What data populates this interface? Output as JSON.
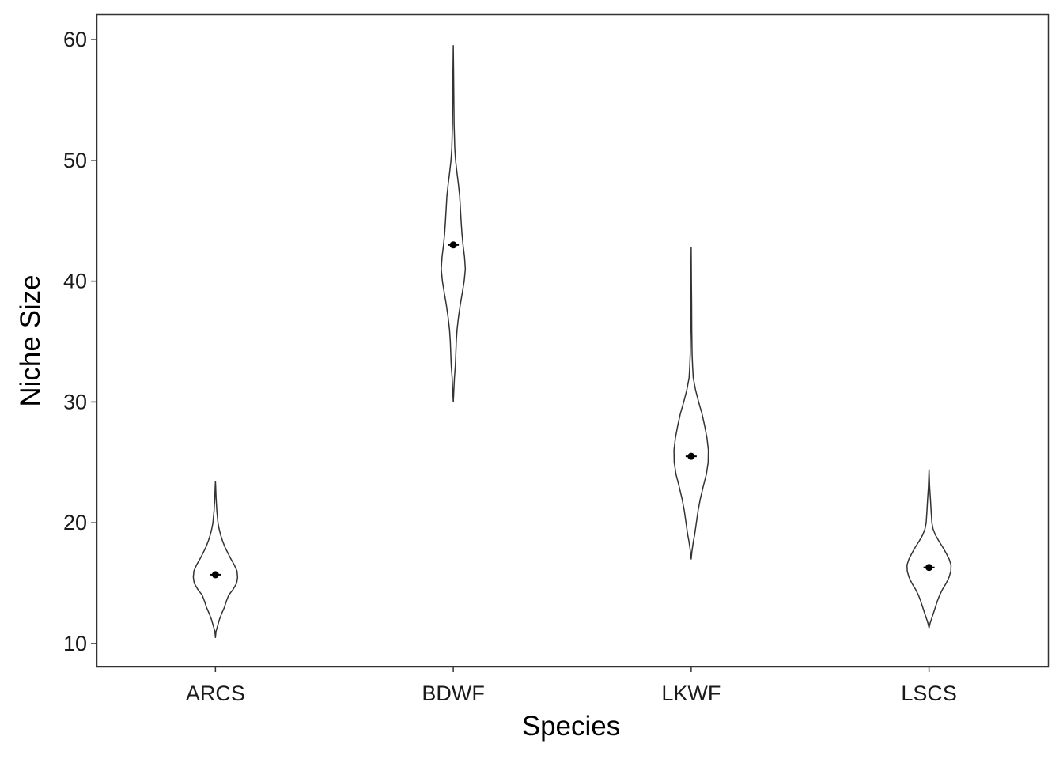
{
  "chart_data": {
    "type": "violin",
    "xlabel": "Species",
    "ylabel": "Niche Size",
    "categories": [
      "ARCS",
      "BDWF",
      "LKWF",
      "LSCS"
    ],
    "ylim": [
      8.1,
      62.1
    ],
    "yticks": [
      10,
      20,
      30,
      40,
      50,
      60
    ],
    "grid": false,
    "legend": "none",
    "series": [
      {
        "category": "ARCS",
        "mean": 15.7,
        "ci": [
          15.6,
          15.8
        ],
        "min": 10.5,
        "max": 23.4,
        "density": [
          [
            10.5,
            0
          ],
          [
            11,
            0.05
          ],
          [
            11.5,
            0.2
          ],
          [
            12,
            0.35
          ],
          [
            12.5,
            0.55
          ],
          [
            13,
            0.78
          ],
          [
            13.5,
            0.95
          ],
          [
            14,
            1.15
          ],
          [
            14.5,
            1.55
          ],
          [
            15,
            1.85
          ],
          [
            15.5,
            1.93
          ],
          [
            16,
            1.88
          ],
          [
            16.5,
            1.65
          ],
          [
            17,
            1.35
          ],
          [
            17.5,
            1.08
          ],
          [
            18,
            0.82
          ],
          [
            18.5,
            0.62
          ],
          [
            19,
            0.45
          ],
          [
            19.5,
            0.32
          ],
          [
            20,
            0.22
          ],
          [
            21,
            0.12
          ],
          [
            22,
            0.06
          ],
          [
            23,
            0.02
          ],
          [
            23.4,
            0
          ]
        ]
      },
      {
        "category": "BDWF",
        "mean": 43.0,
        "ci": [
          42.8,
          43.2
        ],
        "min": 30.0,
        "max": 59.5,
        "density": [
          [
            30,
            0
          ],
          [
            31,
            0.05
          ],
          [
            32,
            0.1
          ],
          [
            33,
            0.18
          ],
          [
            34,
            0.22
          ],
          [
            35,
            0.26
          ],
          [
            36,
            0.33
          ],
          [
            37,
            0.45
          ],
          [
            38,
            0.6
          ],
          [
            39,
            0.78
          ],
          [
            40,
            0.95
          ],
          [
            41,
            1.05
          ],
          [
            42,
            0.98
          ],
          [
            43,
            0.85
          ],
          [
            44,
            0.75
          ],
          [
            45,
            0.68
          ],
          [
            46,
            0.62
          ],
          [
            47,
            0.56
          ],
          [
            48,
            0.45
          ],
          [
            49,
            0.32
          ],
          [
            50,
            0.2
          ],
          [
            51,
            0.13
          ],
          [
            52,
            0.1
          ],
          [
            53,
            0.07
          ],
          [
            55,
            0.05
          ],
          [
            57,
            0.03
          ],
          [
            59.5,
            0
          ]
        ]
      },
      {
        "category": "LKWF",
        "mean": 25.5,
        "ci": [
          25.3,
          25.7
        ],
        "min": 17.0,
        "max": 42.8,
        "density": [
          [
            17,
            0
          ],
          [
            17.5,
            0.05
          ],
          [
            18,
            0.12
          ],
          [
            18.5,
            0.2
          ],
          [
            19,
            0.3
          ],
          [
            20,
            0.45
          ],
          [
            21,
            0.6
          ],
          [
            22,
            0.8
          ],
          [
            23,
            1.05
          ],
          [
            24,
            1.32
          ],
          [
            25,
            1.48
          ],
          [
            26,
            1.5
          ],
          [
            27,
            1.38
          ],
          [
            28,
            1.18
          ],
          [
            29,
            0.95
          ],
          [
            30,
            0.65
          ],
          [
            31,
            0.38
          ],
          [
            32,
            0.18
          ],
          [
            33,
            0.12
          ],
          [
            34,
            0.08
          ],
          [
            36,
            0.05
          ],
          [
            38,
            0.04
          ],
          [
            40,
            0.02
          ],
          [
            42.8,
            0
          ]
        ]
      },
      {
        "category": "LSCS",
        "mean": 16.3,
        "ci": [
          16.2,
          16.4
        ],
        "min": 11.3,
        "max": 24.4,
        "density": [
          [
            11.3,
            0
          ],
          [
            11.7,
            0.1
          ],
          [
            12,
            0.2
          ],
          [
            12.5,
            0.38
          ],
          [
            13,
            0.55
          ],
          [
            13.5,
            0.72
          ],
          [
            14,
            0.92
          ],
          [
            14.5,
            1.18
          ],
          [
            15,
            1.5
          ],
          [
            15.5,
            1.75
          ],
          [
            16,
            1.9
          ],
          [
            16.5,
            1.92
          ],
          [
            17,
            1.75
          ],
          [
            17.5,
            1.48
          ],
          [
            18,
            1.18
          ],
          [
            18.5,
            0.85
          ],
          [
            19,
            0.55
          ],
          [
            19.5,
            0.35
          ],
          [
            20,
            0.25
          ],
          [
            21,
            0.18
          ],
          [
            22,
            0.12
          ],
          [
            23,
            0.05
          ],
          [
            24.4,
            0
          ]
        ]
      }
    ]
  }
}
